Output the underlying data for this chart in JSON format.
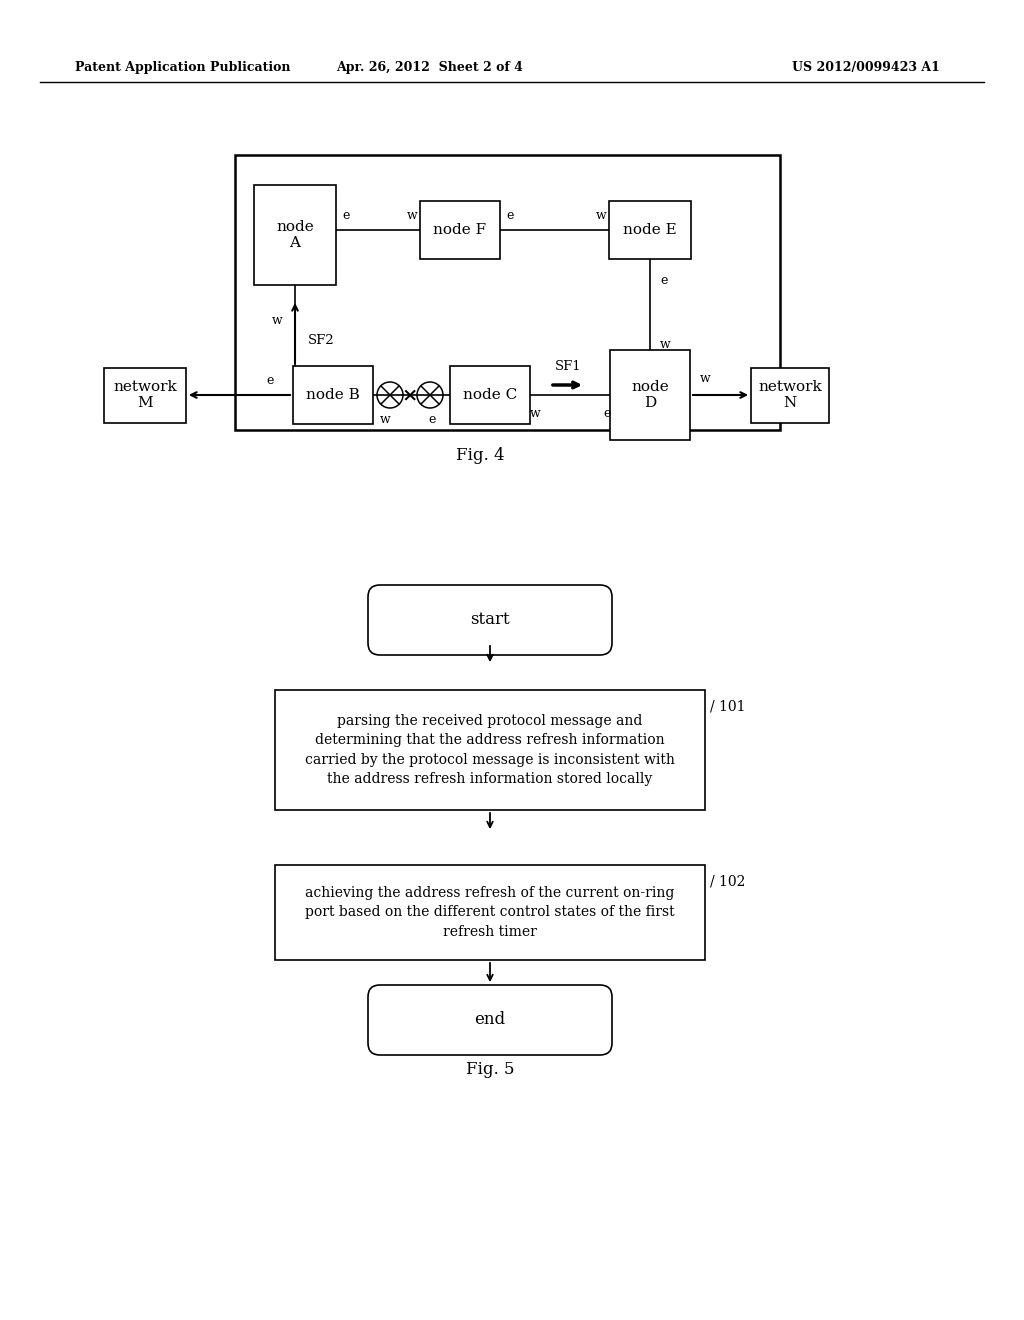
{
  "bg_color": "#ffffff",
  "header_left": "Patent Application Publication",
  "header_mid": "Apr. 26, 2012  Sheet 2 of 4",
  "header_right": "US 2012/0099423 A1",
  "fig4_label": "Fig. 4",
  "fig5_label": "Fig. 5",
  "flow_start_label": "start",
  "flow_end_label": "end",
  "flow_box1_label": "parsing the received protocol message and\ndetermining that the address refresh information\ncarried by the protocol message is inconsistent with\nthe address refresh information stored locally",
  "flow_box1_ref": "101",
  "flow_box2_label": "achieving the address refresh of the current on-ring\nport based on the different control states of the first\nrefresh timer",
  "flow_box2_ref": "102"
}
